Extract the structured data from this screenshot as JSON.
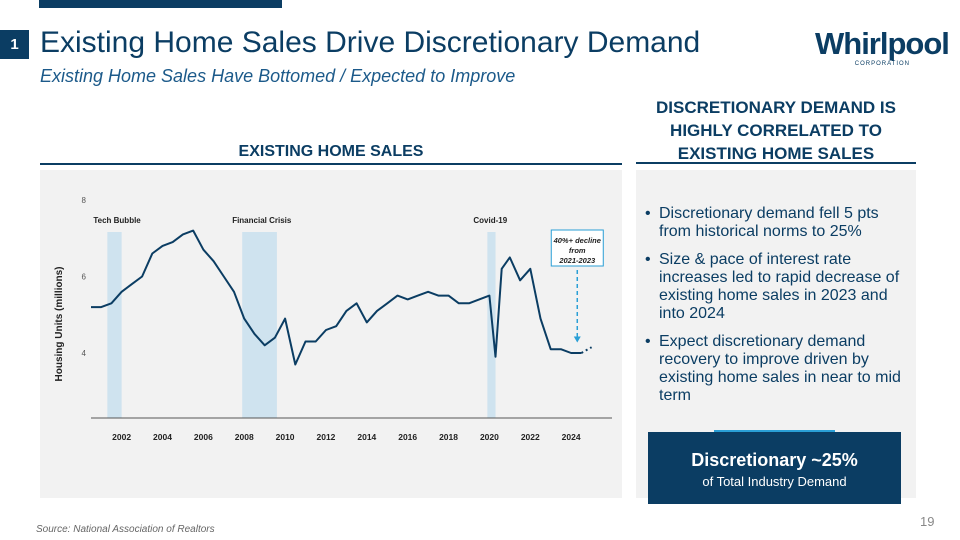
{
  "slide": {
    "number": "1",
    "title": "Existing Home Sales Drive Discretionary Demand",
    "subtitle": "Existing Home Sales Have Bottomed / Expected to Improve",
    "page_number": "19",
    "source": "Source: National Association of Realtors"
  },
  "logo": {
    "name": "Whirlpool",
    "sub": "CORPORATION"
  },
  "colors": {
    "primary": "#0b3d63",
    "accent": "#2a9fd6",
    "shade": "#cfe3ef",
    "panel": "#f2f2f2"
  },
  "chart_heading": "EXISTING HOME SALES",
  "chart_data": {
    "type": "line",
    "title": "EXISTING HOME SALES",
    "xlabel": "",
    "ylabel": "Housing Units (millions)",
    "xlim": [
      2000.5,
      2026.0
    ],
    "ylim": [
      2.3,
      8.0
    ],
    "yticks": [
      4,
      6,
      8
    ],
    "xticks": [
      2002,
      2004,
      2006,
      2008,
      2010,
      2012,
      2014,
      2016,
      2018,
      2020,
      2022,
      2024
    ],
    "series": [
      {
        "name": "Existing Home Sales",
        "x": [
          2000.5,
          2001.0,
          2001.5,
          2002.0,
          2002.5,
          2003.0,
          2003.5,
          2004.0,
          2004.5,
          2005.0,
          2005.5,
          2006.0,
          2006.5,
          2007.0,
          2007.5,
          2008.0,
          2008.5,
          2009.0,
          2009.5,
          2010.0,
          2010.5,
          2011.0,
          2011.5,
          2012.0,
          2012.5,
          2013.0,
          2013.5,
          2014.0,
          2014.5,
          2015.0,
          2015.5,
          2016.0,
          2016.5,
          2017.0,
          2017.5,
          2018.0,
          2018.5,
          2019.0,
          2019.5,
          2020.0,
          2020.3,
          2020.6,
          2021.0,
          2021.5,
          2022.0,
          2022.5,
          2023.0,
          2023.5,
          2024.0,
          2024.5
        ],
        "y": [
          5.2,
          5.2,
          5.3,
          5.6,
          5.8,
          6.0,
          6.6,
          6.8,
          6.9,
          7.1,
          7.2,
          6.7,
          6.4,
          6.0,
          5.6,
          4.9,
          4.5,
          4.2,
          4.4,
          4.9,
          3.7,
          4.3,
          4.3,
          4.6,
          4.7,
          5.1,
          5.3,
          4.8,
          5.1,
          5.3,
          5.5,
          5.4,
          5.5,
          5.6,
          5.5,
          5.5,
          5.3,
          5.3,
          5.4,
          5.5,
          3.9,
          6.2,
          6.5,
          5.9,
          6.2,
          4.9,
          4.1,
          4.1,
          4.0,
          4.0
        ],
        "color": "#0b3d63"
      },
      {
        "name": "Forecast",
        "x": [
          2024.5,
          2025.0
        ],
        "y": [
          4.0,
          4.15
        ],
        "style": "dotted"
      }
    ],
    "shaded_periods": [
      {
        "label": "Tech Bubble",
        "start": 2001.3,
        "end": 2002.0
      },
      {
        "label": "Financial Crisis",
        "start": 2007.9,
        "end": 2009.6
      },
      {
        "label": "Covid-19",
        "start": 2019.9,
        "end": 2020.3
      }
    ],
    "annotation": {
      "lines": [
        "40%+ decline",
        "from",
        "2021-2023"
      ],
      "at_x": 2024.3
    }
  },
  "right": {
    "heading_lines": [
      "DISCRETIONARY DEMAND IS",
      "HIGHLY CORRELATED TO",
      "EXISTING HOME SALES"
    ],
    "bullets": [
      "Discretionary demand fell 5 pts from historical norms to 25%",
      "Size & pace of interest rate increases led to rapid decrease of existing home sales in 2023 and into 2024",
      "Expect discretionary demand recovery to improve driven by existing home sales in near to mid term"
    ],
    "callout": {
      "main": "Discretionary ~25%",
      "sub": "of Total Industry Demand"
    }
  }
}
